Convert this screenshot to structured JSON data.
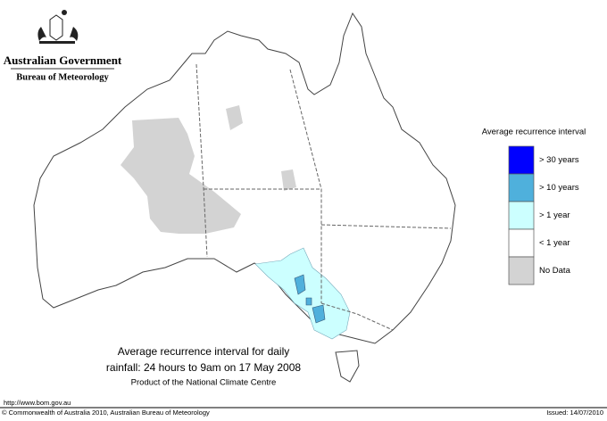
{
  "header": {
    "title": "Australian Government",
    "subtitle": "Bureau of Meteorology"
  },
  "legend": {
    "title": "Average recurrence interval",
    "items": [
      {
        "label": "> 30 years",
        "color": "#0000ff"
      },
      {
        "label": "> 10 years",
        "color": "#4fb0dc"
      },
      {
        "label": "> 1 year",
        "color": "#ccffff"
      },
      {
        "label": "< 1 year",
        "color": "#ffffff"
      },
      {
        "label": "No Data",
        "color": "#d3d3d3"
      }
    ]
  },
  "caption": {
    "lines": [
      "Average recurrence interval for daily",
      "rainfall: 24 hours to 9am on 17 May 2008"
    ],
    "product": "Product of the National Climate Centre"
  },
  "footer": {
    "url": "http://www.bom.gov.au",
    "copyright": "© Commonwealth of Australia 2010, Australian Bureau of Meteorology",
    "issued": "Issued: 14/07/2010"
  }
}
